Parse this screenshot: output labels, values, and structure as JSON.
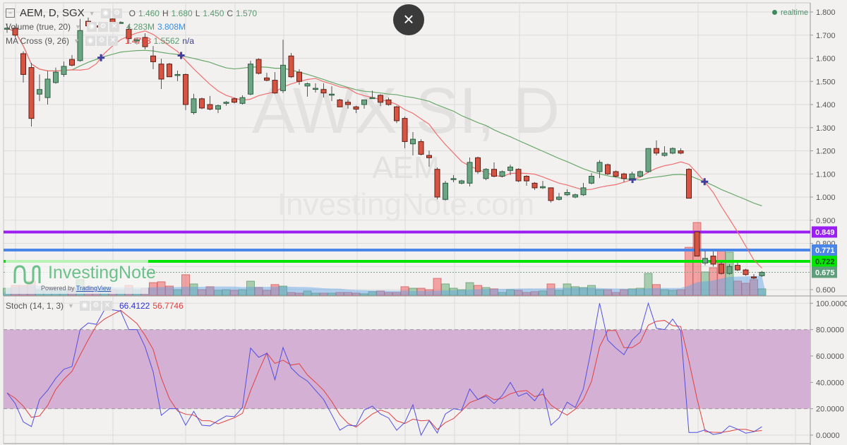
{
  "header": {
    "symbol": "AEM, D, SGX",
    "ohlc": [
      {
        "label": "O",
        "value": "1.460"
      },
      {
        "label": "H",
        "value": "1.680"
      },
      {
        "label": "L",
        "value": "1.450"
      },
      {
        "label": "C",
        "value": "1.570"
      }
    ]
  },
  "volume_legend": {
    "title": "Volume (true, 20)",
    "value": "4.283M",
    "ma": "3.808M"
  },
  "ma_legend": {
    "title": "MA Cross (9, 26)",
    "fast": "1.4758",
    "slow": "1.5562",
    "cross": "n/a"
  },
  "stoch_legend": {
    "title": "Stoch (14, 1, 3)",
    "k": "66.4122",
    "d": "56.7746"
  },
  "realtime": "realtime",
  "close_label": "×",
  "watermark": {
    "symbol": "AWX.SI, D",
    "name": "AEM",
    "site": "InvestingNote.com"
  },
  "logo": {
    "name": "InvestingNote",
    "powered": "Powered by",
    "provider": "TradingView"
  },
  "price_axis": {
    "ticks": [
      "1.800",
      "1.700",
      "1.600",
      "1.500",
      "1.400",
      "1.300",
      "1.200",
      "1.100",
      "1.000",
      "0.900",
      "0.800",
      "0.600"
    ]
  },
  "stoch_axis": {
    "ticks": [
      "100.0000",
      "80.0000",
      "60.0000",
      "40.0000",
      "20.0000",
      "0.0000"
    ]
  },
  "levels": [
    {
      "value": "0.849",
      "color": "#9b1ff2",
      "text_color": "#ffffff"
    },
    {
      "value": "0.771",
      "color": "#4a86e8",
      "text_color": "#ffffff"
    },
    {
      "value": "0.722",
      "color": "#00e600",
      "text_color": "#1a4a1a"
    }
  ],
  "last_price": {
    "value": "0.675",
    "color": "#5f9e7b"
  },
  "colors": {
    "up": "#6ba583",
    "down": "#d75442",
    "ma_fast": "#f07070",
    "ma_slow": "#6aa86a",
    "stoch_k": "#5050e0",
    "stoch_d": "#e04040",
    "stoch_band": "#d4b0d4",
    "volume_ma": "#6cb0ea"
  },
  "chart_data": [
    {
      "type": "candlestick",
      "ylim": [
        0.6,
        1.8
      ],
      "ohlc": [
        [
          1.73,
          1.75,
          1.71,
          1.73
        ],
        [
          1.73,
          1.74,
          1.69,
          1.7
        ],
        [
          1.62,
          1.63,
          1.495,
          1.53
        ],
        [
          1.56,
          1.58,
          1.305,
          1.34
        ],
        [
          1.445,
          1.53,
          1.415,
          1.465
        ],
        [
          1.43,
          1.545,
          1.4,
          1.51
        ],
        [
          1.495,
          1.56,
          1.49,
          1.54
        ],
        [
          1.53,
          1.586,
          1.52,
          1.565
        ],
        [
          1.595,
          1.614,
          1.565,
          1.57
        ],
        [
          1.59,
          1.77,
          1.585,
          1.72
        ],
        [
          1.76,
          1.776,
          1.73,
          1.74
        ],
        [
          1.74,
          1.75,
          1.72,
          1.735
        ],
        [
          1.745,
          1.755,
          1.73,
          1.75
        ],
        [
          1.77,
          1.775,
          1.745,
          1.75
        ],
        [
          1.755,
          1.76,
          1.75,
          1.755
        ],
        [
          1.725,
          1.742,
          1.663,
          1.685
        ],
        [
          1.675,
          1.69,
          1.66,
          1.68
        ],
        [
          1.69,
          1.708,
          1.638,
          1.65
        ],
        [
          1.61,
          1.653,
          1.553,
          1.585
        ],
        [
          1.575,
          1.598,
          1.467,
          1.51
        ],
        [
          1.575,
          1.58,
          1.522,
          1.52
        ],
        [
          1.53,
          1.547,
          1.501,
          1.53
        ],
        [
          1.53,
          1.534,
          1.376,
          1.4
        ],
        [
          1.365,
          1.446,
          1.357,
          1.425
        ],
        [
          1.425,
          1.43,
          1.38,
          1.385
        ],
        [
          1.4,
          1.437,
          1.375,
          1.38
        ],
        [
          1.38,
          1.4,
          1.363,
          1.395
        ],
        [
          1.405,
          1.415,
          1.395,
          1.41
        ],
        [
          1.425,
          1.43,
          1.405,
          1.41
        ],
        [
          1.405,
          1.44,
          1.4,
          1.43
        ],
        [
          1.445,
          1.589,
          1.44,
          1.575
        ],
        [
          1.595,
          1.6,
          1.53,
          1.535
        ],
        [
          1.515,
          1.537,
          1.5,
          1.505
        ],
        [
          1.505,
          1.54,
          1.446,
          1.45
        ],
        [
          1.46,
          1.68,
          1.45,
          1.57
        ],
        [
          1.61,
          1.623,
          1.515,
          1.52
        ],
        [
          1.54,
          1.553,
          1.485,
          1.5
        ],
        [
          1.48,
          1.495,
          1.434,
          1.49
        ],
        [
          1.47,
          1.492,
          1.452,
          1.47
        ],
        [
          1.465,
          1.492,
          1.431,
          1.45
        ],
        [
          1.445,
          1.479,
          1.415,
          1.445
        ],
        [
          1.42,
          1.425,
          1.39,
          1.39
        ],
        [
          1.41,
          1.421,
          1.382,
          1.4
        ],
        [
          1.39,
          1.395,
          1.363,
          1.38
        ],
        [
          1.4,
          1.42,
          1.382,
          1.42
        ],
        [
          1.43,
          1.46,
          1.425,
          1.43
        ],
        [
          1.44,
          1.445,
          1.394,
          1.41
        ],
        [
          1.42,
          1.43,
          1.395,
          1.4
        ],
        [
          1.39,
          1.395,
          1.32,
          1.33
        ],
        [
          1.34,
          1.348,
          1.211,
          1.24
        ],
        [
          1.23,
          1.281,
          1.18,
          1.25
        ],
        [
          1.24,
          1.25,
          1.18,
          1.185
        ],
        [
          1.18,
          1.201,
          1.131,
          1.17
        ],
        [
          1.12,
          1.128,
          0.99,
          1.0
        ],
        [
          0.99,
          1.07,
          0.985,
          1.06
        ],
        [
          1.08,
          1.095,
          1.064,
          1.08
        ],
        [
          1.06,
          1.075,
          1.055,
          1.07
        ],
        [
          1.06,
          1.171,
          1.046,
          1.15
        ],
        [
          1.17,
          1.175,
          1.1,
          1.11
        ],
        [
          1.08,
          1.125,
          1.073,
          1.12
        ],
        [
          1.12,
          1.15,
          1.085,
          1.09
        ],
        [
          1.09,
          1.115,
          1.085,
          1.11
        ],
        [
          1.115,
          1.14,
          1.095,
          1.13
        ],
        [
          1.12,
          1.125,
          1.065,
          1.07
        ],
        [
          1.09,
          1.095,
          1.049,
          1.07
        ],
        [
          1.06,
          1.065,
          1.031,
          1.04
        ],
        [
          1.04,
          1.07,
          1.035,
          1.045
        ],
        [
          1.04,
          1.04,
          0.976,
          0.985
        ],
        [
          0.99,
          1.018,
          0.985,
          1.0
        ],
        [
          1.01,
          1.034,
          1.005,
          1.02
        ],
        [
          1.0,
          1.015,
          0.995,
          1.01
        ],
        [
          1.01,
          1.061,
          1.005,
          1.04
        ],
        [
          1.06,
          1.104,
          1.055,
          1.09
        ],
        [
          1.11,
          1.16,
          1.082,
          1.15
        ],
        [
          1.14,
          1.145,
          1.095,
          1.1
        ],
        [
          1.11,
          1.115,
          1.085,
          1.09
        ],
        [
          1.1,
          1.105,
          1.064,
          1.08
        ],
        [
          1.08,
          1.11,
          1.064,
          1.1
        ],
        [
          1.09,
          1.115,
          1.085,
          1.11
        ],
        [
          1.11,
          1.21,
          1.105,
          1.21
        ],
        [
          1.21,
          1.245,
          1.18,
          1.19
        ],
        [
          1.18,
          1.22,
          1.175,
          1.19
        ],
        [
          1.19,
          1.215,
          1.185,
          1.21
        ],
        [
          1.2,
          1.211,
          1.185,
          1.19
        ],
        [
          1.12,
          1.125,
          0.995,
          0.995
        ],
        [
          0.85,
          0.855,
          0.745,
          0.745
        ],
        [
          0.715,
          0.768,
          0.705,
          0.735
        ],
        [
          0.745,
          0.765,
          0.7,
          0.71
        ],
        [
          0.71,
          0.72,
          0.665,
          0.67
        ],
        [
          0.67,
          0.71,
          0.665,
          0.7
        ],
        [
          0.705,
          0.716,
          0.68,
          0.685
        ],
        [
          0.685,
          0.69,
          0.66,
          0.665
        ],
        [
          0.655,
          0.667,
          0.645,
          0.65
        ],
        [
          0.66,
          0.68,
          0.655,
          0.675
        ]
      ],
      "volume_millions": [
        3.3,
        4.6,
        4.6,
        6.6,
        2.6,
        2.0,
        2.0,
        2.6,
        3.3,
        7.3,
        4.0,
        3.3,
        3.0,
        2.6,
        2.3,
        4.6,
        2.6,
        3.3,
        5.9,
        6.3,
        4.3,
        2.6,
        9.6,
        5.3,
        2.6,
        4.0,
        2.3,
        2.6,
        2.3,
        2.6,
        6.6,
        3.6,
        2.3,
        5.0,
        4.283,
        1.3,
        1.0,
        2.0,
        1.0,
        1.0,
        1.0,
        1.3,
        1.3,
        1.0,
        0.7,
        1.7,
        2.0,
        1.3,
        1.3,
        4.0,
        3.3,
        3.3,
        2.6,
        7.9,
        5.3,
        3.3,
        2.6,
        5.9,
        4.6,
        3.6,
        3.0,
        1.3,
        2.6,
        2.3,
        1.3,
        1.7,
        2.0,
        5.3,
        2.3,
        5.3,
        4.0,
        3.6,
        4.6,
        2.6,
        2.6,
        1.3,
        2.6,
        3.0,
        3.3,
        10.2,
        5.0,
        2.6,
        2.3,
        2.6,
        22.4,
        34.0,
        10.9,
        12.9,
        20.8,
        20.1,
        6.6,
        5.6,
        7.3,
        3.0
      ],
      "ma_periods": [
        9,
        26
      ],
      "volume_ma_period": 20
    },
    {
      "type": "line",
      "ylim": [
        0,
        100
      ],
      "band": [
        20,
        80
      ],
      "stoch_k": [
        32,
        24,
        10,
        6.5,
        27,
        34,
        43,
        50,
        52,
        80,
        85,
        84,
        95,
        95,
        94,
        80,
        80,
        67,
        48,
        15,
        20,
        20,
        7.5,
        18,
        7.5,
        7,
        11,
        14.5,
        14,
        21,
        66,
        59,
        62,
        42,
        66.41,
        51,
        45,
        41,
        34,
        27,
        15.5,
        3.7,
        7.5,
        7,
        19,
        22,
        16,
        13,
        3.7,
        9.6,
        23,
        0,
        11,
        1.6,
        16,
        20,
        19,
        35,
        27,
        29.5,
        24,
        30,
        40,
        29.5,
        32,
        26,
        35,
        7.5,
        13,
        25,
        21,
        35,
        66,
        100,
        72,
        66,
        61,
        72,
        78,
        100,
        81,
        80,
        88,
        79,
        2,
        2,
        4,
        0.5,
        1.5,
        7,
        4.5,
        1.5,
        2.5,
        6.4
      ],
      "stoch_d_smoothing": 3
    }
  ]
}
